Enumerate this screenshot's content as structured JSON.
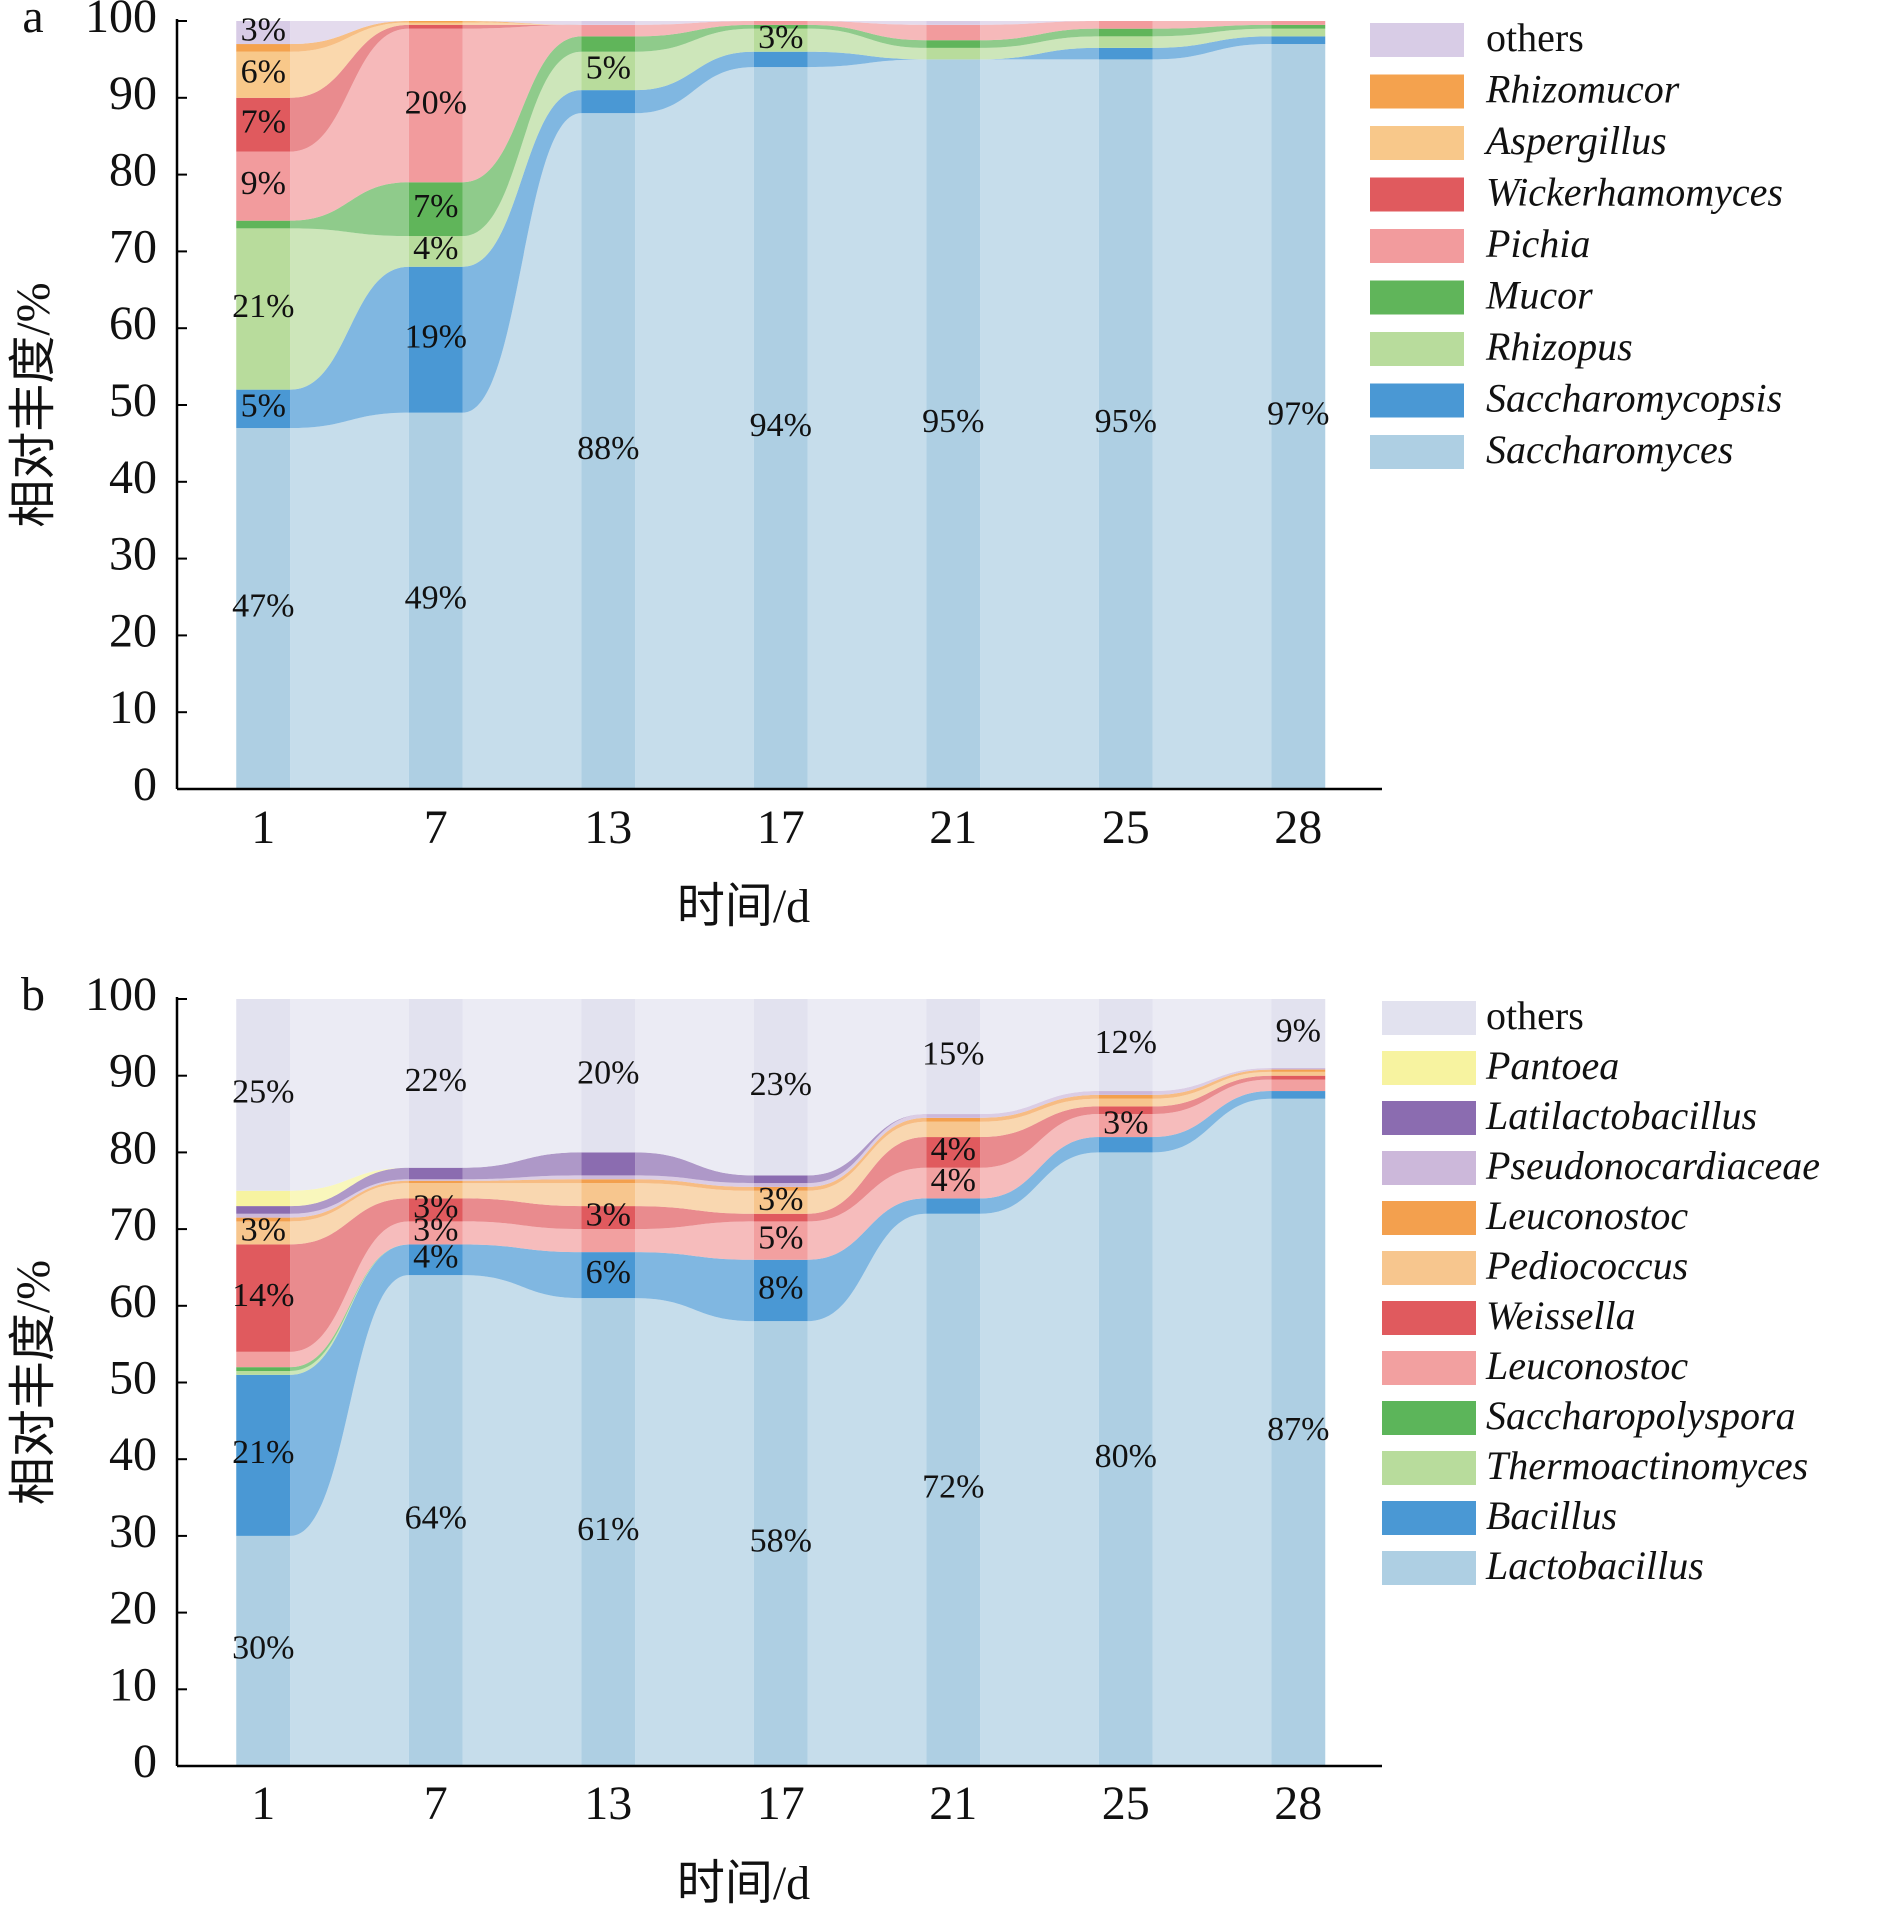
{
  "chart_data": [
    {
      "type": "stacked_alluvial",
      "panel_label": "a",
      "x_label": "时间/d",
      "y_label": "相对丰度/%",
      "categories": [
        "1",
        "7",
        "13",
        "17",
        "21",
        "25",
        "28"
      ],
      "ylim": [
        0,
        100
      ],
      "yticks": [
        0,
        10,
        20,
        30,
        40,
        50,
        60,
        70,
        80,
        90,
        100
      ],
      "series": [
        {
          "name": "Saccharomyces",
          "color": "#aecfe3",
          "font_style": "italic",
          "values": [
            47,
            49,
            88,
            94,
            95,
            95,
            97
          ],
          "value_labels": [
            "47%",
            "49%",
            "88%",
            "94%",
            "95%",
            "95%",
            "97%"
          ]
        },
        {
          "name": "Saccharomycopsis",
          "color": "#4a98d4",
          "font_style": "italic",
          "values": [
            5,
            19,
            3,
            2,
            0,
            1.5,
            1
          ],
          "value_labels": [
            "5%",
            "19%",
            null,
            null,
            null,
            null,
            null
          ]
        },
        {
          "name": "Rhizopus",
          "color": "#b8dc9c",
          "font_style": "italic",
          "values": [
            21,
            4,
            5,
            3,
            1.5,
            1.5,
            1
          ],
          "value_labels": [
            "21%",
            "4%",
            "5%",
            "3%",
            null,
            null,
            null
          ]
        },
        {
          "name": "Mucor",
          "color": "#60b55a",
          "font_style": "italic",
          "values": [
            1,
            7,
            2,
            0.5,
            1,
            1,
            0.5
          ],
          "value_labels": [
            null,
            "7%",
            null,
            null,
            null,
            null,
            null
          ]
        },
        {
          "name": "Pichia",
          "color": "#f29b9d",
          "font_style": "italic",
          "values": [
            9,
            20,
            1.5,
            0.5,
            2,
            1,
            0.5
          ],
          "value_labels": [
            "9%",
            "20%",
            null,
            null,
            null,
            null,
            null
          ]
        },
        {
          "name": "Wickerhamomyces",
          "color": "#e05a5e",
          "font_style": "italic",
          "values": [
            7,
            0.5,
            0,
            0,
            0,
            0,
            0
          ],
          "value_labels": [
            "7%",
            null,
            null,
            null,
            null,
            null,
            null
          ]
        },
        {
          "name": "Aspergillus",
          "color": "#f8c88a",
          "font_style": "italic",
          "values": [
            6,
            0.3,
            0,
            0,
            0,
            0,
            0
          ],
          "value_labels": [
            "6%",
            null,
            null,
            null,
            null,
            null,
            null
          ]
        },
        {
          "name": "Rhizomucor",
          "color": "#f4a24e",
          "font_style": "italic",
          "values": [
            1,
            0.2,
            0,
            0,
            0,
            0,
            0
          ],
          "value_labels": [
            null,
            null,
            null,
            null,
            null,
            null,
            null
          ]
        },
        {
          "name": "others",
          "color": "#d8cce6",
          "font_style": "normal",
          "values": [
            3,
            0,
            0.5,
            0,
            0.5,
            0,
            0
          ],
          "value_labels": [
            "3%",
            null,
            null,
            null,
            null,
            null,
            null
          ]
        }
      ]
    },
    {
      "type": "stacked_alluvial",
      "panel_label": "b",
      "x_label": "时间/d",
      "y_label": "相对丰度/%",
      "categories": [
        "1",
        "7",
        "13",
        "17",
        "21",
        "25",
        "28"
      ],
      "ylim": [
        0,
        100
      ],
      "yticks": [
        0,
        10,
        20,
        30,
        40,
        50,
        60,
        70,
        80,
        90,
        100
      ],
      "series": [
        {
          "name": "Lactobacillus",
          "color": "#aecfe3",
          "font_style": "italic",
          "values": [
            30,
            64,
            61,
            58,
            72,
            80,
            87
          ],
          "value_labels": [
            "30%",
            "64%",
            "61%",
            "58%",
            "72%",
            "80%",
            "87%"
          ]
        },
        {
          "name": "Bacillus",
          "color": "#4a98d4",
          "font_style": "italic",
          "values": [
            21,
            4,
            6,
            8,
            2,
            2,
            1
          ],
          "value_labels": [
            "21%",
            "4%",
            "6%",
            "8%",
            null,
            null,
            null
          ]
        },
        {
          "name": "Thermoactinomyces",
          "color": "#b8dc9c",
          "font_style": "italic",
          "values": [
            0.5,
            0,
            0,
            0,
            0,
            0,
            0
          ],
          "value_labels": [
            null,
            null,
            null,
            null,
            null,
            null,
            null
          ]
        },
        {
          "name": "Saccharopolyspora",
          "color": "#5cb55a",
          "font_style": "italic",
          "values": [
            0.5,
            0,
            0,
            0,
            0,
            0,
            0
          ],
          "value_labels": [
            null,
            null,
            null,
            null,
            null,
            null,
            null
          ]
        },
        {
          "name": "Leuconostoc",
          "color": "#f2a0a0",
          "font_style": "italic",
          "values": [
            2,
            3,
            3,
            5,
            4,
            3,
            1.5
          ],
          "value_labels": [
            null,
            "3%",
            null,
            "5%",
            "4%",
            "3%",
            null
          ]
        },
        {
          "name": "Weissella",
          "color": "#e05a5e",
          "font_style": "italic",
          "values": [
            14,
            3,
            3,
            1,
            4,
            1,
            0.5
          ],
          "value_labels": [
            "14%",
            "3%",
            "3%",
            null,
            "4%",
            null,
            null
          ]
        },
        {
          "name": "Pediococcus",
          "color": "#f7c68e",
          "font_style": "italic",
          "values": [
            3,
            2,
            3,
            3,
            2,
            1,
            0.5
          ],
          "value_labels": [
            "3%",
            null,
            null,
            "3%",
            null,
            null,
            null
          ]
        },
        {
          "name": "Leuconostoc",
          "color": "#f3a04e",
          "font_style": "italic",
          "values": [
            0.5,
            0.3,
            0.5,
            0.5,
            0.5,
            0.5,
            0.3
          ],
          "value_labels": [
            null,
            null,
            null,
            null,
            null,
            null,
            null
          ]
        },
        {
          "name": "Pseudonocardiaceae",
          "color": "#ccb8da",
          "font_style": "italic",
          "values": [
            0.5,
            0.2,
            0.5,
            0.5,
            0.5,
            0.5,
            0.2
          ],
          "value_labels": [
            null,
            null,
            null,
            null,
            null,
            null,
            null
          ]
        },
        {
          "name": "Latilactobacillus",
          "color": "#8b6cb0",
          "font_style": "italic",
          "values": [
            1,
            1.5,
            3,
            1,
            0,
            0,
            0
          ],
          "value_labels": [
            null,
            null,
            null,
            null,
            null,
            null,
            null
          ]
        },
        {
          "name": "Pantoea",
          "color": "#f7f3a0",
          "font_style": "italic",
          "values": [
            2,
            0,
            0,
            0,
            0,
            0,
            0
          ],
          "value_labels": [
            null,
            null,
            null,
            null,
            null,
            null,
            null
          ]
        },
        {
          "name": "others",
          "color": "#e2e2ef",
          "font_style": "normal",
          "values": [
            25,
            22,
            20,
            23,
            15,
            12,
            9
          ],
          "value_labels": [
            "25%",
            "22%",
            "20%",
            "23%",
            "15%",
            "12%",
            "9%"
          ]
        }
      ]
    }
  ]
}
